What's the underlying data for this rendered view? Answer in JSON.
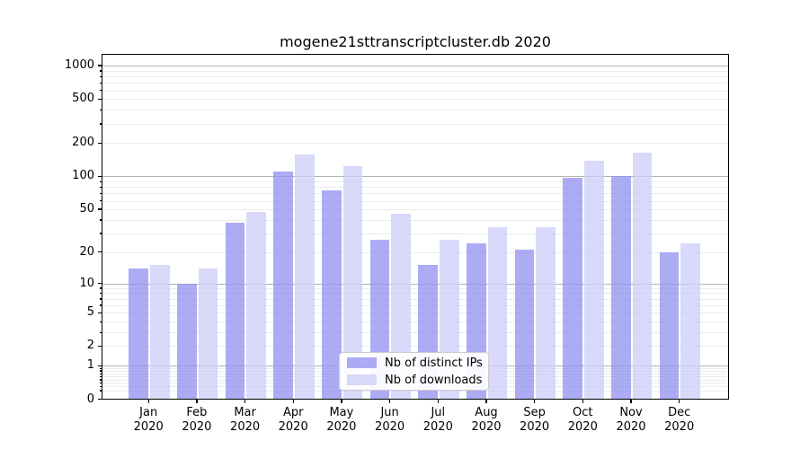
{
  "chart_data": {
    "type": "bar",
    "title": "mogene21sttranscriptcluster.db 2020",
    "categories": [
      "Jan",
      "Feb",
      "Mar",
      "Apr",
      "May",
      "Jun",
      "Jul",
      "Aug",
      "Sep",
      "Oct",
      "Nov",
      "Dec"
    ],
    "category_year": "2020",
    "series": [
      {
        "name": "Nb of distinct IPs",
        "color": "#9090f0",
        "values": [
          14,
          10,
          38,
          110,
          75,
          26,
          15,
          24,
          21,
          97,
          100,
          20
        ]
      },
      {
        "name": "Nb of downloads",
        "color": "#ccccf8",
        "values": [
          15,
          14,
          47,
          157,
          125,
          46,
          26,
          34,
          34,
          138,
          165,
          24
        ]
      }
    ],
    "yscale": "log1p",
    "ylim": [
      0,
      1255
    ],
    "yticks": [
      0,
      1,
      2,
      5,
      10,
      20,
      50,
      100,
      200,
      500,
      1000
    ],
    "grid": "on",
    "legend_position": "lower-center",
    "colors": {
      "major_grid": "#b3b3b3",
      "minor_grid": "#ebebeb",
      "axis": "#000000",
      "background": "#ffffff"
    }
  }
}
